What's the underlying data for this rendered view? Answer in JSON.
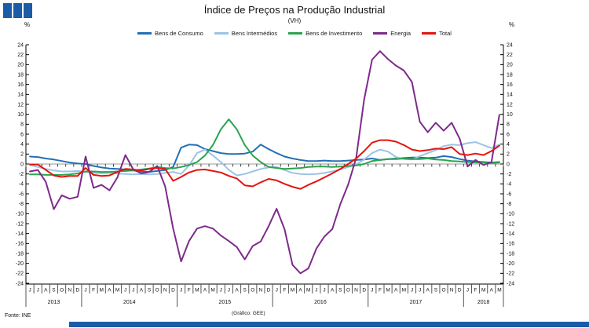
{
  "header": {
    "title": "Índice de Preços na Produção Industrial",
    "subtitle": "(VH)",
    "unit_left": "%",
    "unit_right": "%"
  },
  "footer": {
    "source": "Fonte: INE",
    "credit": "(Gráfico: GEE)"
  },
  "logo": {
    "squares": 3,
    "color": "#1b5ca6"
  },
  "chart_data": {
    "type": "line",
    "title": "Índice de Preços na Produção Industrial",
    "subtitle": "(VH)",
    "ylabel_left": "%",
    "ylabel_right": "%",
    "ylim": [
      -24,
      24
    ],
    "ytick_step": 2,
    "grid": false,
    "zero_line": true,
    "legend_position": "top-center",
    "x_start": "Jun 2013",
    "x_end": "May 2018",
    "month_letters": [
      "J",
      "J",
      "A",
      "S",
      "O",
      "N",
      "D",
      "J",
      "F",
      "M",
      "A",
      "M",
      "J",
      "J",
      "A",
      "S",
      "O",
      "N",
      "D",
      "J",
      "F",
      "M",
      "A",
      "M",
      "J",
      "J",
      "A",
      "S",
      "O",
      "N",
      "D",
      "J",
      "F",
      "M",
      "A",
      "M",
      "J",
      "J",
      "A",
      "S",
      "O",
      "N",
      "D",
      "J",
      "F",
      "M",
      "A",
      "M",
      "J",
      "J",
      "A",
      "S",
      "O",
      "N",
      "D",
      "J",
      "F",
      "M",
      "A",
      "M"
    ],
    "year_groups": [
      {
        "label": "2013",
        "months": 7
      },
      {
        "label": "2014",
        "months": 12
      },
      {
        "label": "2015",
        "months": 12
      },
      {
        "label": "2016",
        "months": 12
      },
      {
        "label": "2017",
        "months": 12
      },
      {
        "label": "2018",
        "months": 5
      }
    ],
    "series": [
      {
        "name": "Bens de Consumo",
        "color": "#2270b3",
        "values": [
          1.5,
          1.4,
          1.1,
          0.9,
          0.6,
          0.3,
          0.1,
          0.0,
          -0.4,
          -0.7,
          -0.9,
          -1.0,
          -1.1,
          -1.3,
          -1.5,
          -1.6,
          -1.4,
          -1.2,
          -0.6,
          3.3,
          3.9,
          3.8,
          3.0,
          2.6,
          2.2,
          2.0,
          2.0,
          2.1,
          2.5,
          3.9,
          3.0,
          2.2,
          1.5,
          1.1,
          0.8,
          0.6,
          0.6,
          0.7,
          0.6,
          0.6,
          0.7,
          0.8,
          0.9,
          1.1,
          0.8,
          1.0,
          1.1,
          1.2,
          1.3,
          1.3,
          1.2,
          1.3,
          1.6,
          1.4,
          1.0,
          0.7,
          0.5,
          0.4,
          0.3,
          0.4
        ]
      },
      {
        "name": "Bens Intermédios",
        "color": "#9cc3e5",
        "values": [
          -0.2,
          -0.6,
          -1.0,
          -1.3,
          -1.5,
          -1.5,
          -1.4,
          -1.6,
          -1.8,
          -1.9,
          -1.8,
          -1.9,
          -2.0,
          -2.1,
          -2.0,
          -2.1,
          -2.0,
          -1.8,
          -1.6,
          -2.0,
          -0.3,
          2.2,
          2.9,
          1.7,
          0.4,
          -1.2,
          -2.3,
          -2.0,
          -1.5,
          -1.0,
          -0.7,
          -0.6,
          -1.2,
          -1.8,
          -2.0,
          -2.1,
          -2.0,
          -1.8,
          -1.5,
          -1.1,
          -0.6,
          -0.1,
          0.9,
          2.2,
          2.9,
          2.5,
          1.4,
          1.0,
          0.9,
          1.6,
          2.2,
          2.8,
          3.6,
          3.9,
          3.8,
          4.2,
          4.4,
          3.8,
          3.2,
          3.9
        ]
      },
      {
        "name": "Bens de Investimento",
        "color": "#2aa44d",
        "values": [
          -2.1,
          -2.1,
          -2.2,
          -2.2,
          -2.2,
          -2.1,
          -1.9,
          -1.5,
          -1.5,
          -1.6,
          -1.6,
          -1.5,
          -1.4,
          -1.3,
          -1.1,
          -0.9,
          -0.6,
          -0.8,
          -0.9,
          -0.6,
          -0.2,
          0.4,
          1.7,
          3.8,
          7.0,
          9.0,
          7.0,
          3.8,
          1.7,
          0.4,
          -0.6,
          -0.8,
          -1.0,
          -0.9,
          -0.8,
          -0.6,
          -0.5,
          -0.5,
          -0.6,
          -0.5,
          -0.4,
          -0.3,
          0.0,
          0.6,
          0.8,
          1.0,
          1.0,
          1.1,
          1.0,
          1.0,
          1.1,
          0.9,
          0.8,
          0.6,
          0.5,
          0.4,
          0.3,
          0.3,
          0.2,
          0.3
        ]
      },
      {
        "name": "Energia",
        "color": "#7d2b8b",
        "values": [
          -1.5,
          -1.2,
          -3.6,
          -9.1,
          -6.3,
          -7.0,
          -6.6,
          1.5,
          -4.8,
          -4.2,
          -5.3,
          -2.7,
          1.8,
          -1.1,
          -1.9,
          -1.6,
          -0.4,
          -4.5,
          -13.0,
          -19.6,
          -15.5,
          -13.0,
          -12.5,
          -13.0,
          -14.4,
          -15.5,
          -16.7,
          -19.2,
          -16.5,
          -15.6,
          -12.5,
          -9.0,
          -13.1,
          -20.3,
          -22.0,
          -21.0,
          -17.0,
          -14.6,
          -13.1,
          -8.1,
          -4.1,
          1.2,
          13.0,
          21.0,
          22.7,
          21.1,
          19.8,
          18.8,
          16.5,
          8.5,
          6.4,
          8.3,
          6.7,
          8.3,
          5.1,
          -0.5,
          0.8,
          -0.2,
          0.4,
          9.9
        ]
      },
      {
        "name": "Total",
        "color": "#e3140e",
        "values": [
          -0.1,
          -0.1,
          -1.2,
          -2.3,
          -2.6,
          -2.4,
          -2.4,
          -0.8,
          -2.2,
          -2.4,
          -2.3,
          -1.6,
          -1.0,
          -1.1,
          -1.3,
          -1.0,
          -0.8,
          -1.0,
          -3.4,
          -2.6,
          -1.7,
          -1.2,
          -1.1,
          -1.4,
          -1.7,
          -2.4,
          -2.9,
          -4.3,
          -4.5,
          -3.7,
          -3.0,
          -3.3,
          -4.0,
          -4.6,
          -5.0,
          -4.2,
          -3.5,
          -2.7,
          -1.9,
          -1.0,
          0.0,
          1.1,
          2.6,
          4.3,
          4.8,
          4.8,
          4.5,
          3.8,
          2.9,
          2.6,
          2.8,
          3.1,
          3.0,
          3.4,
          2.0,
          1.8,
          2.1,
          1.8,
          2.6,
          3.7
        ]
      }
    ]
  }
}
